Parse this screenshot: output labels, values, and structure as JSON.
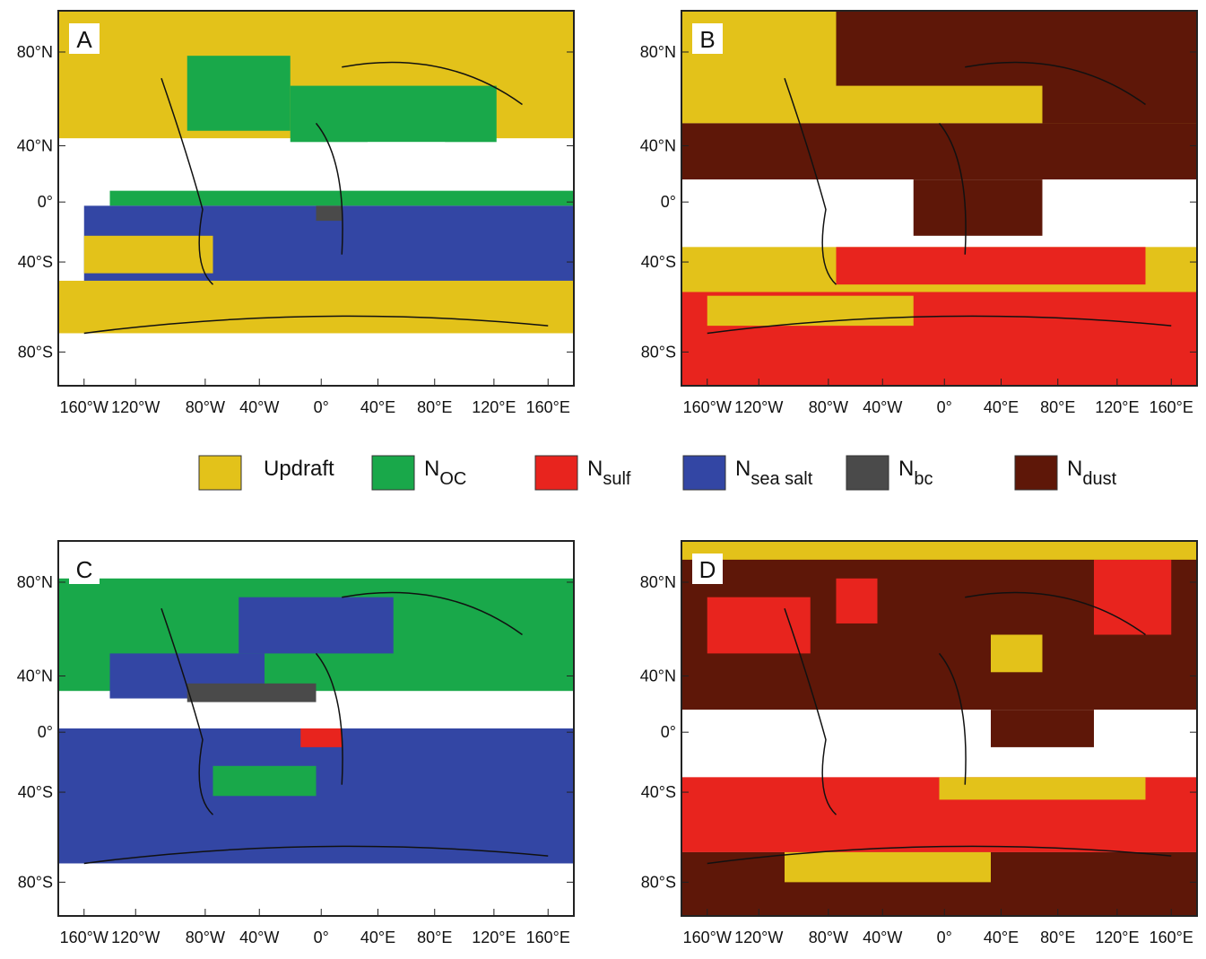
{
  "panels": [
    {
      "label": "A"
    },
    {
      "label": "B"
    },
    {
      "label": "C"
    },
    {
      "label": "D"
    }
  ],
  "lat_ticks": [
    "80°N",
    "40°N",
    "0°",
    "40°S",
    "80°S"
  ],
  "lon_ticks": [
    "160°W",
    "120°W",
    "80°W",
    "40°W",
    "0°",
    "40°E",
    "80°E",
    "120°E",
    "160°E"
  ],
  "legend": [
    {
      "name": "Updraft",
      "color": "#e3c21a"
    },
    {
      "name": "N",
      "sub": "OC",
      "color": "#19a84a"
    },
    {
      "name": "N",
      "sub": "sulf",
      "color": "#e8241e"
    },
    {
      "name": "N",
      "sub": "sea salt",
      "color": "#3346a4"
    },
    {
      "name": "N",
      "sub": "bc",
      "color": "#4a4a4a"
    },
    {
      "name": "N",
      "sub": "dust",
      "color": "#5e1708"
    }
  ]
}
